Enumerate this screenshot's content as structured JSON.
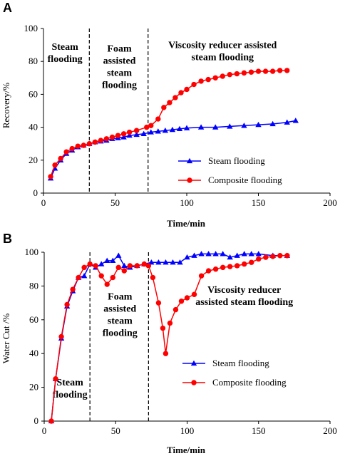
{
  "chart_data": [
    {
      "panel": "A",
      "type": "line",
      "xlabel": "Time/min",
      "ylabel": "Recovery/%",
      "xlim": [
        0,
        200
      ],
      "ylim": [
        0,
        100
      ],
      "xticks": [
        0,
        50,
        100,
        150,
        200
      ],
      "yticks": [
        0,
        20,
        40,
        60,
        80,
        100
      ],
      "dividers_x": [
        32,
        73
      ],
      "regions": [
        {
          "lines": [
            "Steam",
            "flooding"
          ],
          "x": 15,
          "y": 87
        },
        {
          "lines": [
            "Foam",
            "assisted",
            "steam",
            "flooding"
          ],
          "x": 53,
          "y": 86
        },
        {
          "lines": [
            "Viscosity reducer assisted",
            "steam flooding"
          ],
          "x": 125,
          "y": 88
        }
      ],
      "legend": {
        "position": "lower-right"
      },
      "series": [
        {
          "name": "Steam flooding",
          "color": "#0000ff",
          "marker": "triangle",
          "points": [
            [
              5,
              9
            ],
            [
              8,
              15
            ],
            [
              12,
              20
            ],
            [
              16,
              24
            ],
            [
              20,
              26
            ],
            [
              24,
              28
            ],
            [
              28,
              29
            ],
            [
              32,
              30
            ],
            [
              36,
              31
            ],
            [
              40,
              31.5
            ],
            [
              44,
              32
            ],
            [
              48,
              33
            ],
            [
              52,
              33.5
            ],
            [
              56,
              34
            ],
            [
              60,
              35
            ],
            [
              65,
              35.5
            ],
            [
              70,
              36
            ],
            [
              75,
              37
            ],
            [
              80,
              37.5
            ],
            [
              85,
              38
            ],
            [
              90,
              38.5
            ],
            [
              95,
              39
            ],
            [
              100,
              39.5
            ],
            [
              110,
              40
            ],
            [
              120,
              40
            ],
            [
              130,
              40.5
            ],
            [
              140,
              41
            ],
            [
              150,
              41.5
            ],
            [
              160,
              42
            ],
            [
              170,
              43
            ],
            [
              176,
              44
            ]
          ]
        },
        {
          "name": "Composite flooding",
          "color": "#ff0000",
          "marker": "circle",
          "points": [
            [
              5,
              10
            ],
            [
              8,
              17
            ],
            [
              12,
              21
            ],
            [
              16,
              25
            ],
            [
              20,
              27
            ],
            [
              24,
              28.5
            ],
            [
              28,
              29
            ],
            [
              32,
              30
            ],
            [
              36,
              31
            ],
            [
              40,
              32
            ],
            [
              44,
              33
            ],
            [
              48,
              34
            ],
            [
              52,
              35
            ],
            [
              56,
              36
            ],
            [
              60,
              37
            ],
            [
              65,
              38
            ],
            [
              72,
              40
            ],
            [
              75,
              41
            ],
            [
              80,
              45
            ],
            [
              84,
              52
            ],
            [
              88,
              55
            ],
            [
              92,
              58
            ],
            [
              96,
              61
            ],
            [
              100,
              63
            ],
            [
              105,
              66
            ],
            [
              110,
              68
            ],
            [
              115,
              69
            ],
            [
              120,
              70
            ],
            [
              125,
              71
            ],
            [
              130,
              72
            ],
            [
              135,
              72.5
            ],
            [
              140,
              73
            ],
            [
              145,
              73.5
            ],
            [
              150,
              74
            ],
            [
              155,
              74
            ],
            [
              160,
              74
            ],
            [
              165,
              74.5
            ],
            [
              170,
              74.5
            ]
          ]
        }
      ]
    },
    {
      "panel": "B",
      "type": "line",
      "xlabel": "Time/min",
      "ylabel": "Water Cut /%",
      "xlim": [
        0,
        200
      ],
      "ylim": [
        0,
        100
      ],
      "xticks": [
        0,
        50,
        100,
        150,
        200
      ],
      "yticks": [
        0,
        20,
        40,
        60,
        80,
        100
      ],
      "dividers_x": [
        32,
        73
      ],
      "regions": [
        {
          "lines": [
            "Foam",
            "assisted",
            "steam",
            "flooding"
          ],
          "x": 53,
          "y": 72
        },
        {
          "lines": [
            "Viscosity reducer",
            "assisted steam flooding"
          ],
          "x": 140,
          "y": 76
        },
        {
          "lines": [
            "Steam",
            "flooding"
          ],
          "x": 18,
          "y": 21
        }
      ],
      "legend": {
        "position": "lower-right"
      },
      "series": [
        {
          "name": "Steam flooding",
          "color": "#0000ff",
          "marker": "triangle",
          "points": [
            [
              5,
              0
            ],
            [
              8,
              25
            ],
            [
              12,
              49
            ],
            [
              16,
              68
            ],
            [
              20,
              77
            ],
            [
              24,
              85
            ],
            [
              28,
              86
            ],
            [
              32,
              93
            ],
            [
              36,
              91
            ],
            [
              40,
              93
            ],
            [
              44,
              95
            ],
            [
              48,
              95
            ],
            [
              52,
              98
            ],
            [
              56,
              92
            ],
            [
              60,
              91
            ],
            [
              65,
              92
            ],
            [
              70,
              93
            ],
            [
              75,
              94
            ],
            [
              80,
              94
            ],
            [
              85,
              94
            ],
            [
              90,
              94
            ],
            [
              95,
              94
            ],
            [
              100,
              97
            ],
            [
              105,
              98
            ],
            [
              110,
              99
            ],
            [
              115,
              99
            ],
            [
              120,
              99
            ],
            [
              125,
              99
            ],
            [
              130,
              97
            ],
            [
              135,
              98
            ],
            [
              140,
              99
            ],
            [
              145,
              99
            ],
            [
              150,
              99
            ],
            [
              160,
              98
            ],
            [
              170,
              98
            ]
          ]
        },
        {
          "name": "Composite flooding",
          "color": "#ff0000",
          "marker": "circle",
          "points": [
            [
              5,
              0
            ],
            [
              8,
              25
            ],
            [
              12,
              50
            ],
            [
              16,
              69
            ],
            [
              20,
              78
            ],
            [
              24,
              85
            ],
            [
              28,
              91
            ],
            [
              32,
              93
            ],
            [
              36,
              92
            ],
            [
              40,
              86
            ],
            [
              44,
              81
            ],
            [
              48,
              85
            ],
            [
              52,
              91
            ],
            [
              56,
              89
            ],
            [
              60,
              92
            ],
            [
              65,
              92
            ],
            [
              70,
              93
            ],
            [
              73,
              92
            ],
            [
              76,
              85
            ],
            [
              80,
              70
            ],
            [
              83,
              55
            ],
            [
              85,
              40
            ],
            [
              88,
              58
            ],
            [
              92,
              66
            ],
            [
              96,
              71
            ],
            [
              100,
              73
            ],
            [
              105,
              75
            ],
            [
              110,
              86
            ],
            [
              115,
              89
            ],
            [
              120,
              90
            ],
            [
              125,
              91
            ],
            [
              130,
              91.5
            ],
            [
              135,
              92
            ],
            [
              140,
              93
            ],
            [
              145,
              94
            ],
            [
              150,
              96
            ],
            [
              155,
              97
            ],
            [
              160,
              97.5
            ],
            [
              165,
              98
            ],
            [
              170,
              98
            ]
          ]
        }
      ]
    }
  ]
}
